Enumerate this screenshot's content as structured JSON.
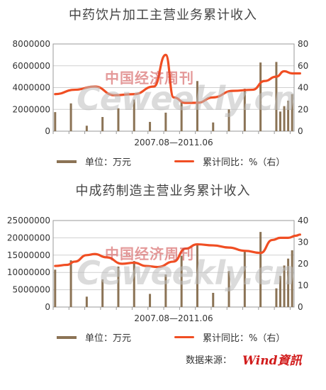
{
  "chart_data": [
    {
      "type": "bar",
      "title": "中药饮片加工主营业务累计收入",
      "xlabel": "2007.08—2011.06",
      "y_left_ticks": [
        "8000000",
        "6000000",
        "4000000",
        "2000000",
        "0"
      ],
      "y_right_ticks": [
        "80",
        "60",
        "40",
        "20",
        "0"
      ],
      "ylim_left": [
        0,
        8000000
      ],
      "ylim_right": [
        0,
        80
      ],
      "grid": true,
      "legend_position": "bottom",
      "series": [
        {
          "name": "单位：万元",
          "axis": "left",
          "kind": "bar",
          "color": "#8b7355",
          "values": [
            1750000,
            0,
            0,
            0,
            2550000,
            0,
            0,
            0,
            500000,
            0,
            0,
            0,
            1300000,
            0,
            0,
            0,
            2100000,
            0,
            0,
            0,
            2900000,
            0,
            0,
            0,
            850000,
            0,
            0,
            0,
            1700000,
            0,
            0,
            0,
            2700000,
            0,
            0,
            0,
            4600000,
            0,
            0,
            0,
            800000,
            0,
            0,
            0,
            2000000,
            0,
            0,
            0,
            3900000,
            0,
            0,
            0,
            6300000,
            0,
            0,
            0,
            6350000,
            1800000,
            2300000,
            2800000,
            3400000
          ]
        },
        {
          "name": "累计同比：%（右）",
          "axis": "right",
          "kind": "line",
          "color": "#f04e23",
          "x_index": [
            0,
            5,
            10,
            15,
            20,
            25,
            28,
            30,
            33,
            36,
            40,
            45,
            50,
            53,
            56,
            58,
            60,
            62
          ],
          "values": [
            34,
            38,
            41,
            33,
            34,
            41,
            70,
            31,
            26,
            26,
            31,
            37,
            38,
            46,
            50,
            55,
            53,
            53
          ]
        }
      ]
    },
    {
      "type": "bar",
      "title": "中成药制造主营业务累计收入",
      "xlabel": "2007.08—2011.06",
      "y_left_ticks": [
        "25000000",
        "20000000",
        "15000000",
        "10000000",
        "5000000",
        "0"
      ],
      "y_right_ticks": [
        "40",
        "30",
        "20",
        "10",
        "0"
      ],
      "ylim_left": [
        0,
        25000000
      ],
      "ylim_right": [
        0,
        40
      ],
      "grid": true,
      "legend_position": "bottom",
      "series": [
        {
          "name": "单位：万元",
          "axis": "left",
          "kind": "bar",
          "color": "#8b7355",
          "values": [
            10800000,
            0,
            0,
            0,
            13500000,
            0,
            0,
            0,
            3000000,
            0,
            0,
            0,
            8000000,
            0,
            0,
            0,
            11700000,
            0,
            0,
            0,
            13300000,
            0,
            0,
            0,
            3800000,
            0,
            0,
            0,
            9400000,
            0,
            0,
            0,
            14800000,
            0,
            0,
            0,
            18400000,
            0,
            0,
            0,
            4100000,
            0,
            0,
            0,
            10400000,
            0,
            0,
            0,
            16300000,
            0,
            0,
            0,
            21700000,
            0,
            0,
            0,
            5400000,
            9000000,
            12000000,
            14000000,
            16400000
          ]
        },
        {
          "name": "累计同比：%（右）",
          "axis": "right",
          "kind": "line",
          "color": "#f04e23",
          "x_index": [
            0,
            3,
            5,
            8,
            10,
            13,
            17,
            20,
            23,
            26,
            30,
            33,
            36,
            40,
            44,
            48,
            52,
            55,
            57,
            59,
            61,
            62
          ],
          "values": [
            19,
            19.5,
            21,
            24,
            24.5,
            23,
            20,
            20.5,
            19,
            18.5,
            21,
            27,
            29,
            28.5,
            27.5,
            26,
            25,
            31,
            32,
            32,
            33,
            33.5
          ]
        }
      ]
    }
  ],
  "legend": {
    "bar_label": "单位：万元",
    "line_label": "累计同比：%（右）"
  },
  "watermark": {
    "chinese": "中国经济周刊",
    "english": "Ceweekly.cn",
    "small": "CEWeekly"
  },
  "source": {
    "label": "数据来源：",
    "logo": "Wind資訊"
  },
  "colors": {
    "bar": "#8b7355",
    "line": "#f04e23",
    "grid": "#d0d0d0",
    "frame": "#999999"
  }
}
